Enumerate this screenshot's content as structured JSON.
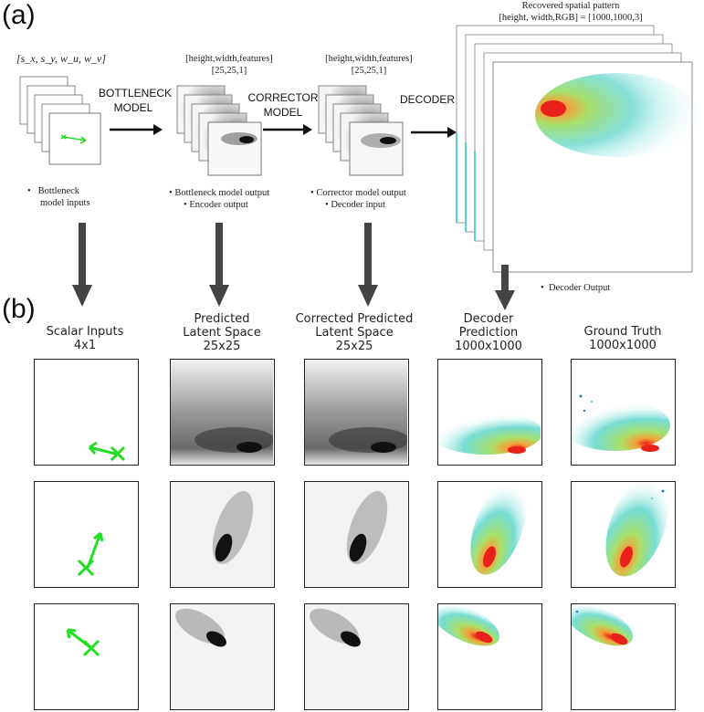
{
  "panels": {
    "a": "(a)",
    "b": "(b)"
  },
  "section_a": {
    "input_vector": "[s_x, s_y, w_u, w_v]",
    "bottleneck_model": [
      "BOTTLENECK",
      "MODEL"
    ],
    "corrector_model": [
      "CORRECTOR",
      "MODEL"
    ],
    "decoder": "DECODER",
    "shape1": [
      "[height,width,features]",
      "[25,25,1]"
    ],
    "shape2": [
      "[height,width,features]",
      "[25,25,1]"
    ],
    "shape3": [
      "Recovered spatial pattern",
      "[height, width,RGB] = [1000,1000,3]"
    ],
    "caption1": [
      "Bottleneck",
      "model inputs"
    ],
    "caption2": [
      "Bottleneck model output",
      "Encoder output"
    ],
    "caption3": [
      "Corrector model output",
      "Decoder input"
    ],
    "caption4": "Decoder Output"
  },
  "section_b": {
    "columns": [
      {
        "title": "Scalar Inputs",
        "size": "4x1"
      },
      {
        "title": "Predicted",
        "title2": "Latent Space",
        "size": "25x25"
      },
      {
        "title": "Corrected Predicted",
        "title2": "Latent Space",
        "size": "25x25"
      },
      {
        "title": "Decoder",
        "title2": "Prediction",
        "size": "1000x1000"
      },
      {
        "title": "Ground Truth",
        "size": "1000x1000"
      }
    ]
  },
  "colors": {
    "arrow": "#444444",
    "vector": "#22dd22",
    "hot": "#e8221a",
    "warm": "#f3a13a",
    "mid": "#a8e06a",
    "cool": "#55d4c8"
  }
}
